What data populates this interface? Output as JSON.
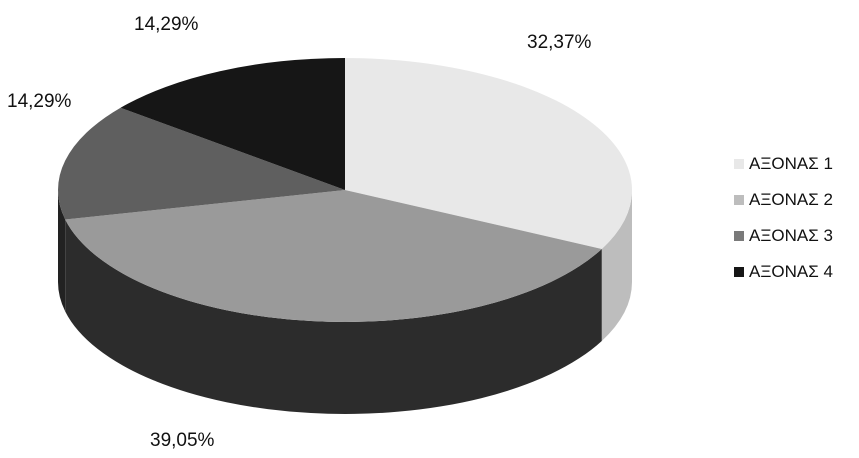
{
  "chart_data": {
    "type": "pie",
    "title": "",
    "categories": [
      "ΑΞΟΝΑΣ 1",
      "ΑΞΟΝΑΣ 2",
      "ΑΞΟΝΑΣ 3",
      "ΑΞΟΝΑΣ 4"
    ],
    "values": [
      32.37,
      39.05,
      14.29,
      14.29
    ],
    "labels": [
      "32,37%",
      "39,05%",
      "14,29%",
      "14,29%"
    ],
    "colors": [
      "#e8e8e8",
      "#9a9a9a",
      "#5f5f5f",
      "#161616"
    ],
    "side_colors": [
      "#bdbdbd",
      "#2c2c2c",
      "#222222",
      "#0b0b0b"
    ],
    "three_d": true,
    "legend_position": "right"
  },
  "legend": {
    "items": [
      {
        "label": "ΑΞΟΝΑΣ 1",
        "color": "#e8e8e8"
      },
      {
        "label": "ΑΞΟΝΑΣ 2",
        "color": "#bdbdbd"
      },
      {
        "label": "ΑΞΟΝΑΣ 3",
        "color": "#7a7a7a"
      },
      {
        "label": "ΑΞΟΝΑΣ 4",
        "color": "#161616"
      }
    ]
  }
}
